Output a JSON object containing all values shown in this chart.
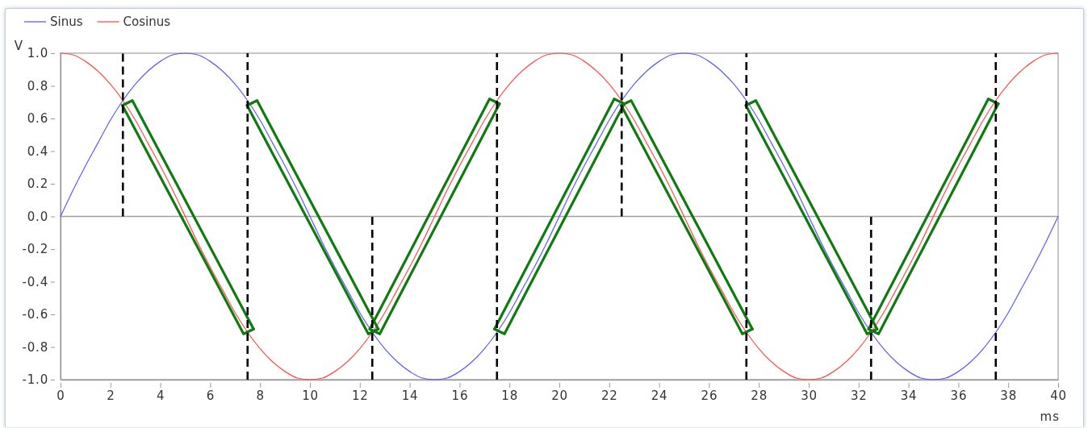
{
  "chart_data": {
    "type": "line",
    "xlabel": "ms",
    "ylabel": "V",
    "legend": "top left",
    "xlim": [
      0,
      40
    ],
    "ylim": [
      -1,
      1
    ],
    "xticks": [
      0,
      2,
      4,
      6,
      8,
      10,
      12,
      14,
      16,
      18,
      20,
      22,
      24,
      26,
      28,
      30,
      32,
      34,
      36,
      38,
      40
    ],
    "yticks": [
      {
        "value": -1,
        "label": "-1.0"
      },
      {
        "value": -0.8,
        "label": "-0.8"
      },
      {
        "value": -0.6,
        "label": "-0.6"
      },
      {
        "value": -0.4,
        "label": "-0.4"
      },
      {
        "value": -0.2,
        "label": "-0.2"
      },
      {
        "value": 0,
        "label": "0.0"
      },
      {
        "value": 0.2,
        "label": "0.2"
      },
      {
        "value": 0.4,
        "label": "0.4"
      },
      {
        "value": 0.6,
        "label": "0.6"
      },
      {
        "value": 0.8,
        "label": "0.8"
      },
      {
        "value": 1,
        "label": "1.0"
      }
    ],
    "ref_lines": [
      {
        "axis": "y",
        "value": 0,
        "color": "#a0a0a0"
      }
    ],
    "x": [
      0,
      0.5,
      1,
      1.5,
      2,
      2.5,
      3,
      3.5,
      4,
      4.5,
      5,
      5.5,
      6,
      6.5,
      7,
      7.5,
      8,
      8.5,
      9,
      9.5,
      10,
      10.5,
      11,
      11.5,
      12,
      12.5,
      13,
      13.5,
      14,
      14.5,
      15,
      15.5,
      16,
      16.5,
      17,
      17.5,
      18,
      18.5,
      19,
      19.5,
      20,
      20.5,
      21,
      21.5,
      22,
      22.5,
      23,
      23.5,
      24,
      24.5,
      25,
      25.5,
      26,
      26.5,
      27,
      27.5,
      28,
      28.5,
      29,
      29.5,
      30,
      30.5,
      31,
      31.5,
      32,
      32.5,
      33,
      33.5,
      34,
      34.5,
      35,
      35.5,
      36,
      36.5,
      37,
      37.5,
      38,
      38.5,
      39,
      39.5,
      40
    ],
    "series": [
      {
        "name": "Sinus",
        "color": "#5b5bff",
        "values": [
          0,
          0.16,
          0.31,
          0.45,
          0.59,
          0.71,
          0.81,
          0.89,
          0.95,
          0.99,
          1,
          0.99,
          0.95,
          0.89,
          0.81,
          0.71,
          0.59,
          0.45,
          0.31,
          0.16,
          0,
          -0.16,
          -0.31,
          -0.45,
          -0.59,
          -0.71,
          -0.81,
          -0.89,
          -0.95,
          -0.99,
          -1,
          -0.99,
          -0.95,
          -0.89,
          -0.81,
          -0.71,
          -0.59,
          -0.45,
          -0.31,
          -0.16,
          0,
          0.16,
          0.31,
          0.45,
          0.59,
          0.71,
          0.81,
          0.89,
          0.95,
          0.99,
          1,
          0.99,
          0.95,
          0.89,
          0.81,
          0.71,
          0.59,
          0.45,
          0.31,
          0.16,
          0,
          -0.16,
          -0.31,
          -0.45,
          -0.59,
          -0.71,
          -0.81,
          -0.89,
          -0.95,
          -0.99,
          -1,
          -0.99,
          -0.95,
          -0.89,
          -0.81,
          -0.71,
          -0.59,
          -0.45,
          -0.31,
          -0.16,
          0
        ]
      },
      {
        "name": "Cosinus",
        "color": "#ff4d4d",
        "values": [
          1,
          0.99,
          0.95,
          0.89,
          0.81,
          0.71,
          0.59,
          0.45,
          0.31,
          0.16,
          0,
          -0.16,
          -0.31,
          -0.45,
          -0.59,
          -0.71,
          -0.81,
          -0.89,
          -0.95,
          -0.99,
          -1,
          -0.99,
          -0.95,
          -0.89,
          -0.81,
          -0.71,
          -0.59,
          -0.45,
          -0.31,
          -0.16,
          0,
          0.16,
          0.31,
          0.45,
          0.59,
          0.71,
          0.81,
          0.89,
          0.95,
          0.99,
          1,
          0.99,
          0.95,
          0.89,
          0.81,
          0.71,
          0.59,
          0.45,
          0.31,
          0.16,
          0,
          -0.16,
          -0.31,
          -0.45,
          -0.59,
          -0.71,
          -0.81,
          -0.89,
          -0.95,
          -0.99,
          -1,
          -0.99,
          -0.95,
          -0.89,
          -0.81,
          -0.71,
          -0.59,
          -0.45,
          -0.31,
          -0.16,
          0,
          0.16,
          0.31,
          0.45,
          0.59,
          0.71,
          0.81,
          0.89,
          0.95,
          0.99,
          1
        ]
      },
      {
        "color": "#0f7a0f",
        "x": [
          2.48,
          2.88,
          7.74
        ],
        "values": [
          0.68,
          0.71,
          -0.69
        ]
      },
      {
        "color": "#0f7a0f",
        "x": [
          2.48,
          7.34,
          7.74
        ],
        "values": [
          0.68,
          -0.72,
          -0.69
        ]
      },
      {
        "color": "#0f7a0f",
        "x": [
          7.48,
          7.88,
          12.74
        ],
        "values": [
          0.68,
          0.71,
          -0.69
        ]
      },
      {
        "color": "#0f7a0f",
        "x": [
          7.48,
          12.34,
          12.74
        ],
        "values": [
          0.68,
          -0.72,
          -0.69
        ]
      },
      {
        "color": "#0f7a0f",
        "x": [
          12.4,
          12.8,
          17.6
        ],
        "values": [
          -0.69,
          -0.72,
          0.69
        ]
      },
      {
        "color": "#0f7a0f",
        "x": [
          12.4,
          17.2,
          17.6
        ],
        "values": [
          -0.69,
          0.72,
          0.69
        ]
      },
      {
        "color": "#0f7a0f",
        "x": [
          17.4,
          17.8,
          22.6
        ],
        "values": [
          -0.69,
          -0.72,
          0.69
        ]
      },
      {
        "color": "#0f7a0f",
        "x": [
          17.4,
          22.2,
          22.6
        ],
        "values": [
          -0.69,
          0.72,
          0.69
        ]
      },
      {
        "color": "#0f7a0f",
        "x": [
          22.48,
          22.88,
          27.74
        ],
        "values": [
          0.68,
          0.71,
          -0.69
        ]
      },
      {
        "color": "#0f7a0f",
        "x": [
          22.48,
          27.34,
          27.74
        ],
        "values": [
          0.68,
          -0.72,
          -0.69
        ]
      },
      {
        "color": "#0f7a0f",
        "x": [
          27.48,
          27.88,
          32.74
        ],
        "values": [
          0.68,
          0.71,
          -0.69
        ]
      },
      {
        "color": "#0f7a0f",
        "x": [
          27.48,
          32.34,
          32.74
        ],
        "values": [
          0.68,
          -0.72,
          -0.69
        ]
      },
      {
        "color": "#0f7a0f",
        "x": [
          32.4,
          32.8,
          37.6
        ],
        "values": [
          -0.69,
          -0.72,
          0.69
        ]
      },
      {
        "color": "#0f7a0f",
        "x": [
          32.4,
          37.2,
          37.6
        ],
        "values": [
          -0.69,
          0.72,
          0.69
        ]
      },
      {
        "color": "#000000",
        "line_style": "dashed",
        "x": [
          2.5,
          2.5
        ],
        "values": [
          0,
          1
        ]
      },
      {
        "color": "#000000",
        "line_style": "dashed",
        "x": [
          7.5,
          7.5
        ],
        "values": [
          -1,
          1
        ]
      },
      {
        "color": "#000000",
        "line_style": "dashed",
        "x": [
          12.5,
          12.5
        ],
        "values": [
          -1,
          0
        ]
      },
      {
        "color": "#000000",
        "line_style": "dashed",
        "x": [
          17.5,
          17.5
        ],
        "values": [
          -1,
          1
        ]
      },
      {
        "color": "#000000",
        "line_style": "dashed",
        "x": [
          22.5,
          22.5
        ],
        "values": [
          0,
          1
        ]
      },
      {
        "color": "#000000",
        "line_style": "dashed",
        "x": [
          27.5,
          27.5
        ],
        "values": [
          -1,
          1
        ]
      },
      {
        "color": "#000000",
        "line_style": "dashed",
        "x": [
          32.5,
          32.5
        ],
        "values": [
          -1,
          0
        ]
      },
      {
        "color": "#000000",
        "line_style": "dashed",
        "x": [
          37.5,
          37.5
        ],
        "values": [
          -1,
          1
        ]
      }
    ]
  }
}
